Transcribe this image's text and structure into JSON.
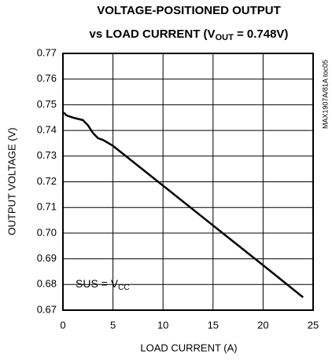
{
  "chart_data": {
    "type": "line",
    "title": [
      "VOLTAGE-POSITIONED OUTPUT",
      "vs LOAD CURRENT (V",
      "OUT",
      " = 0.748V)"
    ],
    "xlabel": "LOAD CURRENT (A)",
    "ylabel": "OUTPUT VOLTAGE (V)",
    "side_note": "MAX1907A/81A toc05",
    "annotation": [
      "SUS = V",
      "CC"
    ],
    "xlim": [
      0,
      25
    ],
    "xticks": [
      0,
      5,
      10,
      15,
      20,
      25
    ],
    "ylim": [
      0.67,
      0.77
    ],
    "yticks": [
      0.67,
      0.68,
      0.69,
      {
        "value": 0.7,
        "label": "0.70"
      },
      0.71,
      0.72,
      0.73,
      0.74,
      0.75,
      0.76,
      0.77
    ],
    "grid": true,
    "series": [
      {
        "color": "#000000",
        "x": [
          0.1,
          0.3,
          0.6,
          1,
          1.5,
          2,
          2.5,
          3,
          3.5,
          4,
          5,
          10,
          15,
          20,
          24
        ],
        "values": [
          0.747,
          0.746,
          0.7455,
          0.745,
          0.7445,
          0.744,
          0.742,
          0.739,
          0.737,
          0.7363,
          0.734,
          0.7185,
          0.703,
          0.6875,
          0.675
        ]
      }
    ]
  }
}
